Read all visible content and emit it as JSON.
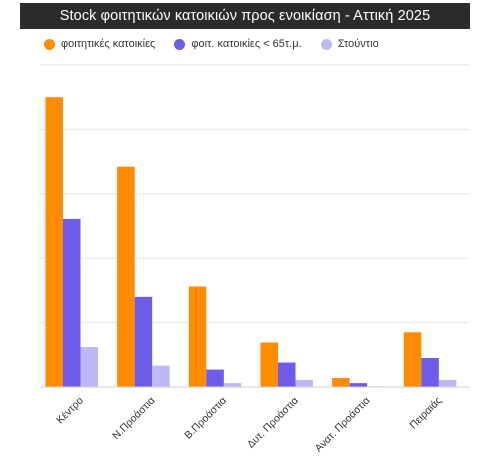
{
  "chart_data": {
    "type": "bar",
    "title": "Stock  φοιτητικών κατοικιών προς ενοικίαση - Αττική 2025",
    "xlabel": "",
    "ylabel": "",
    "categories": [
      "Κέντρο",
      "Ν.Προάστια",
      "Β.Προάστια",
      "Δυτ. Προάστια",
      "Ανατ. Προάστια",
      "Πειραιάς"
    ],
    "series": [
      {
        "name": "φοιτητικές κατοικίες",
        "color": "#ff8c00",
        "values": [
          450,
          342,
          156,
          69,
          14,
          85
        ]
      },
      {
        "name": "φοιτ. κατοικίες < 65τ.μ.",
        "color": "#6c5ce7",
        "values": [
          261,
          140,
          27,
          38,
          6,
          45
        ]
      },
      {
        "name": "Στούντιο",
        "color": "#bdb8f6",
        "values": [
          62,
          33,
          6,
          11,
          1,
          11
        ]
      }
    ],
    "ylim": [
      0,
      500
    ],
    "gridlines": [
      0,
      100,
      200,
      300,
      400,
      500
    ],
    "grid": true,
    "legend_position": "top",
    "background": "#ffffff",
    "title_background": "#2b2b2b"
  }
}
